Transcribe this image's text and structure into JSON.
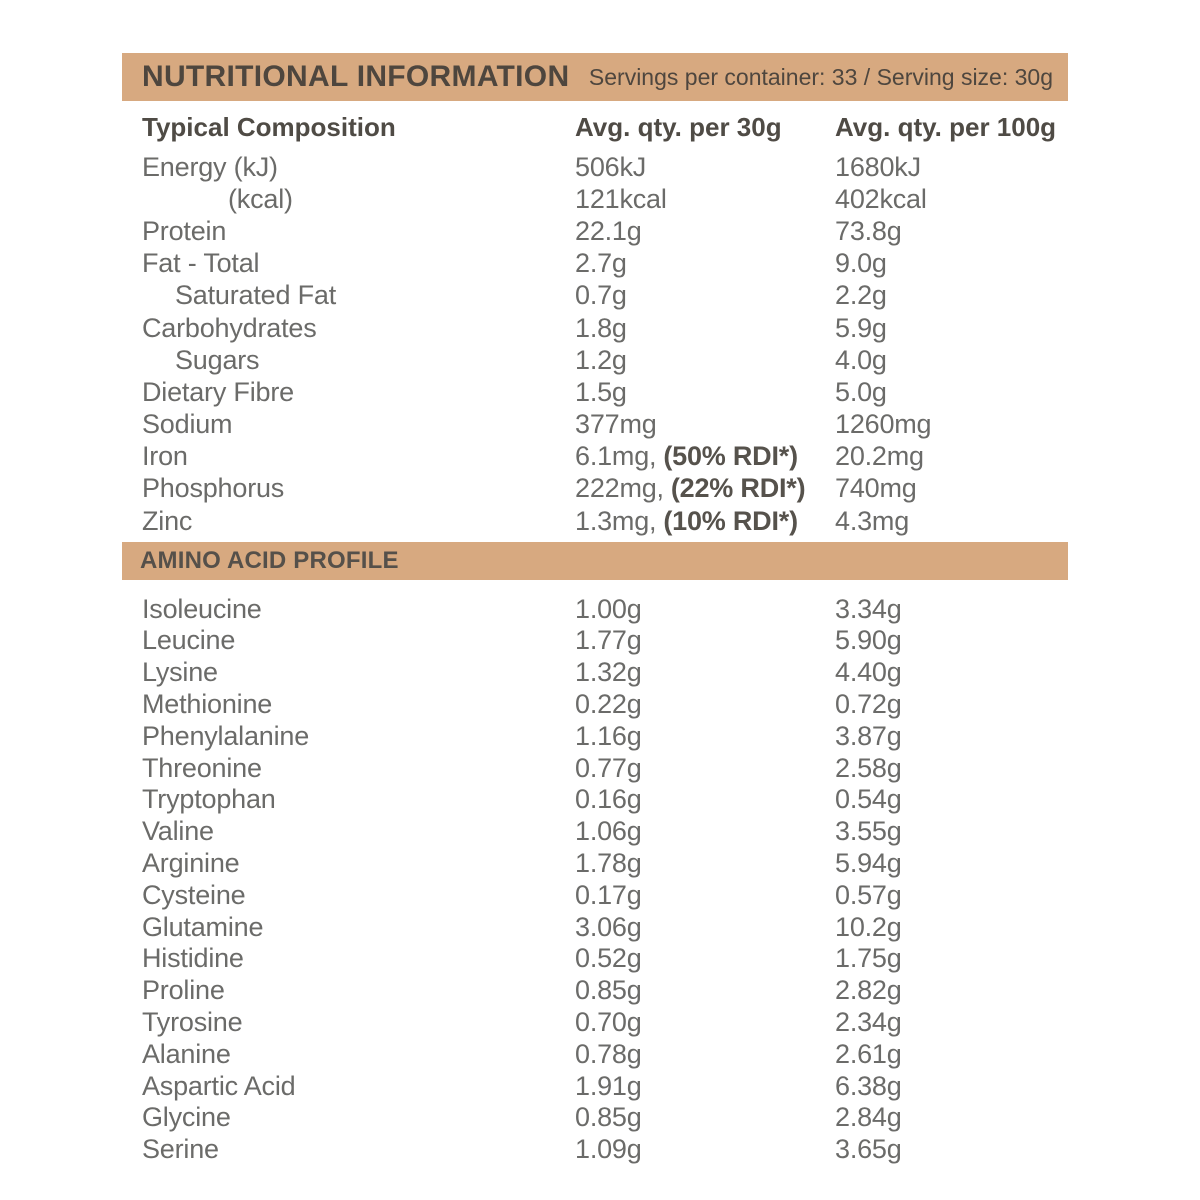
{
  "header": {
    "title": "NUTRITIONAL INFORMATION",
    "servings_info": "Servings per container: 33 / Serving size: 30g"
  },
  "colors": {
    "accent_tan": "#D7A980",
    "bar_text": "#4E463E",
    "column_header_text": "#4F4B45",
    "body_text": "#6B6B69"
  },
  "composition": {
    "columns": [
      "Typical Composition",
      "Avg. qty. per 30g",
      "Avg. qty. per 100g"
    ],
    "rows": [
      {
        "label": "Energy (kJ)",
        "indent": 0,
        "q30": "506kJ",
        "q30_bold": "",
        "q100": "1680kJ"
      },
      {
        "label": "(kcal)",
        "indent": 2,
        "q30": "121kcal",
        "q30_bold": "",
        "q100": "402kcal"
      },
      {
        "label": "Protein",
        "indent": 0,
        "q30": "22.1g",
        "q30_bold": "",
        "q100": "73.8g"
      },
      {
        "label": "Fat - Total",
        "indent": 0,
        "q30": "2.7g",
        "q30_bold": "",
        "q100": "9.0g"
      },
      {
        "label": "Saturated Fat",
        "indent": 1,
        "q30": "0.7g",
        "q30_bold": "",
        "q100": "2.2g"
      },
      {
        "label": "Carbohydrates",
        "indent": 0,
        "q30": "1.8g",
        "q30_bold": "",
        "q100": "5.9g"
      },
      {
        "label": "Sugars",
        "indent": 1,
        "q30": "1.2g",
        "q30_bold": "",
        "q100": "4.0g"
      },
      {
        "label": "Dietary Fibre",
        "indent": 0,
        "q30": "1.5g",
        "q30_bold": "",
        "q100": "5.0g"
      },
      {
        "label": "Sodium",
        "indent": 0,
        "q30": "377mg",
        "q30_bold": "",
        "q100": "1260mg"
      },
      {
        "label": "Iron",
        "indent": 0,
        "q30": "6.1mg,",
        "q30_bold": "(50% RDI*)",
        "q100": "20.2mg"
      },
      {
        "label": "Phosphorus",
        "indent": 0,
        "q30": "222mg,",
        "q30_bold": "(22% RDI*)",
        "q100": "740mg"
      },
      {
        "label": "Zinc",
        "indent": 0,
        "q30": "1.3mg,",
        "q30_bold": "(10% RDI*)",
        "q100": "4.3mg"
      }
    ]
  },
  "amino": {
    "title": "AMINO ACID PROFILE",
    "rows": [
      {
        "label": "Isoleucine",
        "indent": 0,
        "q30": "1.00g",
        "q30_bold": "",
        "q100": "3.34g"
      },
      {
        "label": "Leucine",
        "indent": 0,
        "q30": "1.77g",
        "q30_bold": "",
        "q100": "5.90g"
      },
      {
        "label": "Lysine",
        "indent": 0,
        "q30": "1.32g",
        "q30_bold": "",
        "q100": "4.40g"
      },
      {
        "label": "Methionine",
        "indent": 0,
        "q30": "0.22g",
        "q30_bold": "",
        "q100": "0.72g"
      },
      {
        "label": "Phenylalanine",
        "indent": 0,
        "q30": "1.16g",
        "q30_bold": "",
        "q100": "3.87g"
      },
      {
        "label": "Threonine",
        "indent": 0,
        "q30": "0.77g",
        "q30_bold": "",
        "q100": "2.58g"
      },
      {
        "label": "Tryptophan",
        "indent": 0,
        "q30": "0.16g",
        "q30_bold": "",
        "q100": "0.54g"
      },
      {
        "label": "Valine",
        "indent": 0,
        "q30": "1.06g",
        "q30_bold": "",
        "q100": "3.55g"
      },
      {
        "label": "Arginine",
        "indent": 0,
        "q30": "1.78g",
        "q30_bold": "",
        "q100": "5.94g"
      },
      {
        "label": "Cysteine",
        "indent": 0,
        "q30": "0.17g",
        "q30_bold": "",
        "q100": "0.57g"
      },
      {
        "label": "Glutamine",
        "indent": 0,
        "q30": "3.06g",
        "q30_bold": "",
        "q100": "10.2g"
      },
      {
        "label": "Histidine",
        "indent": 0,
        "q30": "0.52g",
        "q30_bold": "",
        "q100": "1.75g"
      },
      {
        "label": "Proline",
        "indent": 0,
        "q30": "0.85g",
        "q30_bold": "",
        "q100": "2.82g"
      },
      {
        "label": "Tyrosine",
        "indent": 0,
        "q30": "0.70g",
        "q30_bold": "",
        "q100": "2.34g"
      },
      {
        "label": "Alanine",
        "indent": 0,
        "q30": "0.78g",
        "q30_bold": "",
        "q100": "2.61g"
      },
      {
        "label": "Aspartic Acid",
        "indent": 0,
        "q30": "1.91g",
        "q30_bold": "",
        "q100": "6.38g"
      },
      {
        "label": "Glycine",
        "indent": 0,
        "q30": "0.85g",
        "q30_bold": "",
        "q100": "2.84g"
      },
      {
        "label": "Serine",
        "indent": 0,
        "q30": "1.09g",
        "q30_bold": "",
        "q100": "3.65g"
      }
    ]
  }
}
